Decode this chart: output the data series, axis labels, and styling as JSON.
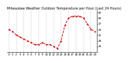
{
  "title": "Milwaukee Weather Outdoor Temperature per Hour (Last 24 Hours)",
  "hours": [
    0,
    1,
    2,
    3,
    4,
    5,
    6,
    7,
    8,
    9,
    10,
    11,
    12,
    13,
    14,
    15,
    16,
    17,
    18,
    19,
    20,
    21,
    22,
    23
  ],
  "temps": [
    34,
    33,
    31,
    30,
    29,
    28,
    27,
    26,
    26,
    27,
    26,
    26,
    25,
    24,
    28,
    36,
    40,
    41,
    41,
    41,
    40,
    37,
    34,
    33
  ],
  "line_color": "#cc0000",
  "bg_color": "#ffffff",
  "grid_color": "#888888",
  "ylim_min": 22,
  "ylim_max": 44,
  "yticks": [
    25,
    28,
    31,
    34,
    37,
    40,
    43
  ],
  "xtick_every": 1,
  "xlabel_fontsize": 3.0,
  "ylabel_fontsize": 3.0,
  "title_fontsize": 3.5,
  "linewidth": 0.7,
  "markersize": 1.2
}
